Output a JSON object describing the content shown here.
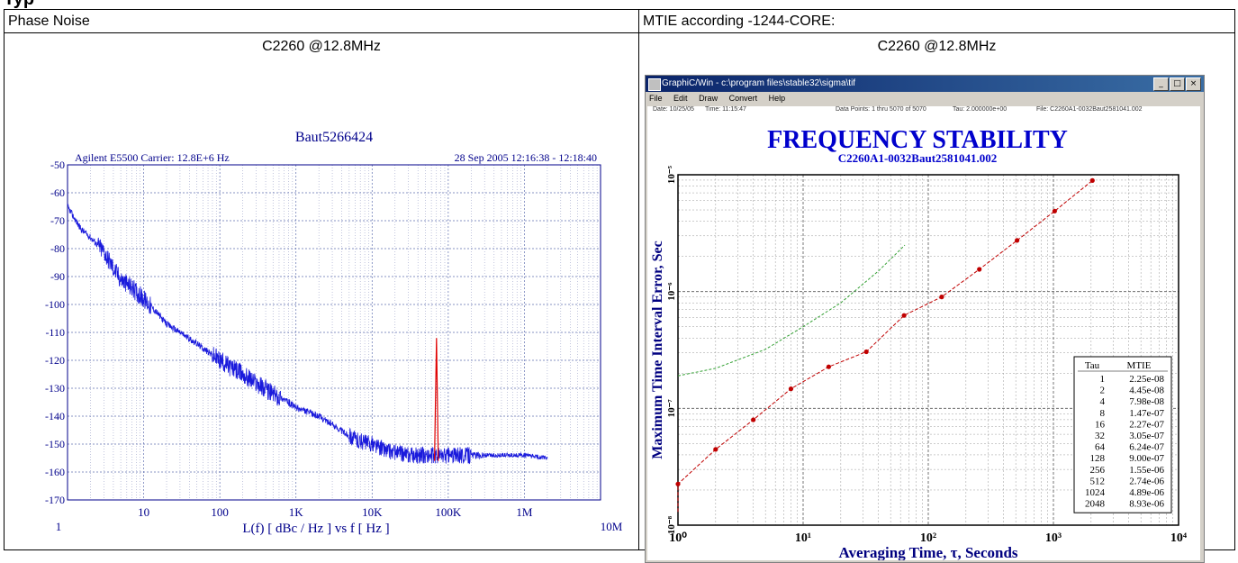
{
  "left_panel": {
    "header": "Phase Noise",
    "subtitle": "C2260 @12.8MHz"
  },
  "right_panel": {
    "header": "MTIE according -1244-CORE:",
    "subtitle": "C2260 @12.8MHz",
    "window": {
      "title": "GraphiC/Win - c:\\program files\\stable32\\sigma\\tif",
      "menu": [
        "File",
        "Edit",
        "Draw",
        "Convert",
        "Help"
      ],
      "info": [
        "Date: 10/25/05",
        "Time: 11:15:47",
        "Data Points: 1 thru 5070 of 5070",
        "Tau: 2.000000e+00",
        "File: C2260A1-0032Baut2581041.002"
      ]
    }
  },
  "chart_data": [
    {
      "type": "line",
      "title": "Baut5266424",
      "header_left": "Agilent E5500   Carrier: 12.8E+6 Hz",
      "header_right": "28 Sep 2005  12:16:38 - 12:18:40",
      "xlabel": "L(f)  [ dBc / Hz ]  vs  f  [ Hz ]",
      "x_scale": "log",
      "xlim": [
        1,
        10000000
      ],
      "ylim": [
        -170,
        -50
      ],
      "x_tick_labels": [
        "1",
        "10",
        "100",
        "1K",
        "10K",
        "100K",
        "1M",
        "10M"
      ],
      "y_tick_labels": [
        "-50",
        "-60",
        "-70",
        "-80",
        "-90",
        "-100",
        "-110",
        "-120",
        "-130",
        "-140",
        "-150",
        "-160",
        "-170"
      ],
      "grid": true,
      "colors": {
        "trace": "#1a1adc",
        "spur": "#e00000",
        "text": "#00008b"
      },
      "series": [
        {
          "x": [
            1,
            1.5,
            2,
            3,
            4,
            5,
            7,
            10,
            15,
            20,
            30,
            50,
            70,
            100,
            150,
            200,
            300,
            500,
            700,
            1000,
            2000,
            3000,
            5000,
            7000,
            10000,
            15000,
            20000,
            30000,
            50000,
            70000,
            100000,
            200000,
            500000,
            1000000,
            2000000
          ],
          "values": [
            -65,
            -73,
            -76,
            -81,
            -87,
            -91,
            -94,
            -98,
            -103,
            -107,
            -110,
            -114,
            -117,
            -120,
            -123,
            -125,
            -128,
            -132,
            -134,
            -137,
            -140,
            -143,
            -147,
            -149,
            -150,
            -152,
            -153,
            -154,
            -154,
            -154,
            -154,
            -154,
            -154,
            -154,
            -155
          ]
        },
        {
          "x": [
            66000,
            70000,
            74000
          ],
          "values": [
            -156,
            -112,
            -156
          ]
        }
      ]
    },
    {
      "type": "line",
      "title": "FREQUENCY STABILITY",
      "subtitle": "C2260A1-0032Baut2581041.002",
      "xlabel": "Averaging Time, τ, Seconds",
      "ylabel": "Maximum Time Interval Error, Sec",
      "x_scale": "log",
      "y_scale": "log",
      "xlim": [
        1,
        10000
      ],
      "ylim": [
        1e-08,
        1e-05
      ],
      "x_tick_labels": [
        "10⁰",
        "10¹",
        "10²",
        "10³",
        "10⁴"
      ],
      "y_tick_labels": [
        "10⁻⁸",
        "10⁻⁷",
        "10⁻⁶",
        "10⁻⁵"
      ],
      "grid": true,
      "colors": {
        "mtie": "#c00000",
        "mask": "#33a033",
        "title": "#0000cc",
        "axis_text": "#000080"
      },
      "legend_headers": [
        "Tau",
        "MTIE"
      ],
      "series": [
        {
          "tau": [
            "1",
            "2",
            "4",
            "8",
            "16",
            "32",
            "64",
            "128",
            "256",
            "512",
            "1024",
            "2048"
          ],
          "mtie": [
            "2.25e-08",
            "4.45e-08",
            "7.98e-08",
            "1.47e-07",
            "2.27e-07",
            "3.05e-07",
            "6.24e-07",
            "9.00e-07",
            "1.55e-06",
            "2.74e-06",
            "4.89e-06",
            "8.93e-06"
          ]
        },
        {
          "tau": [
            1,
            2,
            5,
            10,
            20,
            40,
            65
          ],
          "mask": [
            1.9e-07,
            2.2e-07,
            3.2e-07,
            5e-07,
            8e-07,
            1.5e-06,
            2.5e-06
          ]
        }
      ]
    }
  ]
}
